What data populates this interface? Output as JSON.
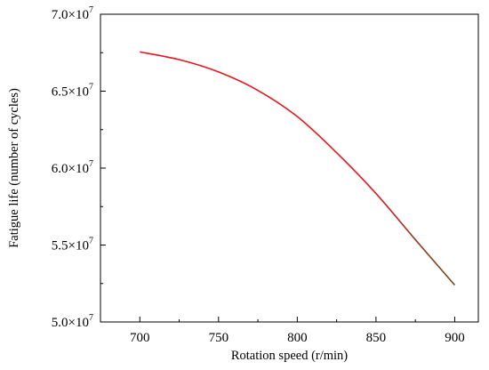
{
  "chart_data": {
    "type": "line",
    "title": "",
    "xlabel": "Rotation speed (r/min)",
    "ylabel": "Fatigue life (number of cycles)",
    "xlim": [
      675,
      915
    ],
    "ylim": [
      50000000,
      70000000
    ],
    "x_ticks": [
      700,
      750,
      800,
      850,
      900
    ],
    "x_tick_labels": [
      "700",
      "750",
      "800",
      "850",
      "900"
    ],
    "y_ticks": [
      50000000,
      55000000,
      60000000,
      65000000,
      70000000
    ],
    "y_tick_labels": [
      {
        "mantissa": "5.0×10",
        "exponent": "7"
      },
      {
        "mantissa": "5.5×10",
        "exponent": "7"
      },
      {
        "mantissa": "6.0×10",
        "exponent": "7"
      },
      {
        "mantissa": "6.5×10",
        "exponent": "7"
      },
      {
        "mantissa": "7.0×10",
        "exponent": "7"
      }
    ],
    "grid": false,
    "legend": "none",
    "series": [
      {
        "color": "#e8141e",
        "color_end": "#6b4a1e",
        "x": [
          700,
          725,
          750,
          775,
          800,
          825,
          850,
          875,
          900
        ],
        "y": [
          67550000,
          67050000,
          66250000,
          65050000,
          63350000,
          61000000,
          58350000,
          55350000,
          52400000
        ]
      }
    ]
  }
}
